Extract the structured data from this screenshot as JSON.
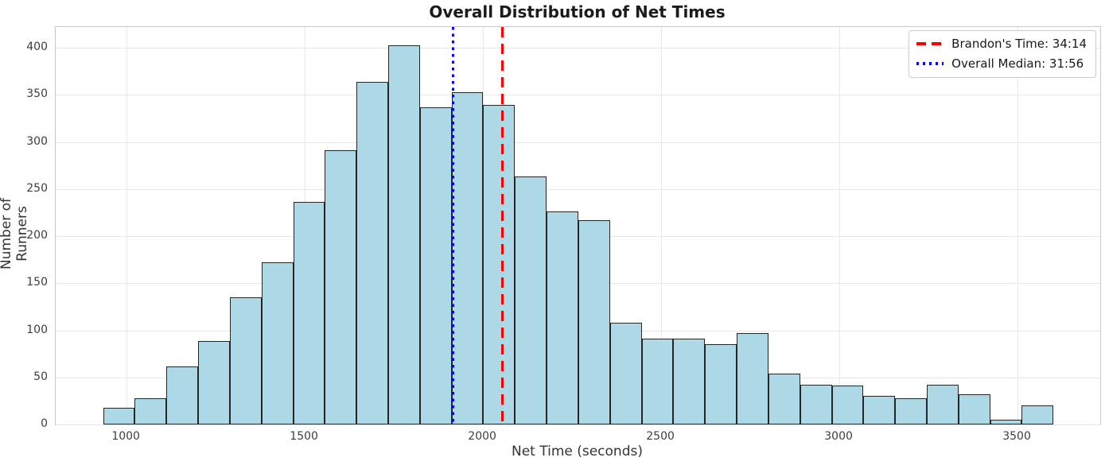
{
  "chart_data": {
    "type": "bar",
    "subtype": "histogram",
    "title": "Overall Distribution of Net Times",
    "xlabel": "Net Time (seconds)",
    "ylabel": "Number of Runners",
    "bin_start": 934,
    "bin_width": 88.9,
    "counts": [
      18,
      28,
      62,
      89,
      135,
      172,
      236,
      291,
      364,
      403,
      337,
      353,
      339,
      263,
      226,
      217,
      108,
      91,
      91,
      85,
      97,
      54,
      42,
      41,
      30,
      28,
      42,
      32,
      5,
      20
    ],
    "xlim": [
      801,
      3732
    ],
    "ylim": [
      0,
      422
    ],
    "x_ticks": [
      1000,
      1500,
      2000,
      2500,
      3000,
      3500
    ],
    "y_ticks": [
      0,
      50,
      100,
      150,
      200,
      250,
      300,
      350,
      400
    ],
    "grid": true,
    "bar_fill": "#add8e6",
    "bar_edge": "#262626",
    "vlines": [
      {
        "x": 2054,
        "color": "#ff0000",
        "style": "dashed",
        "name": "brandons-time-line"
      },
      {
        "x": 1916,
        "color": "#0000ff",
        "style": "dotted",
        "name": "overall-median-line"
      }
    ],
    "legend": {
      "position": "upper right",
      "items": [
        {
          "label": "Brandon's Time: 34:14",
          "color": "#ff0000",
          "style": "dashed"
        },
        {
          "label": "Overall Median: 31:56",
          "color": "#0000ff",
          "style": "dotted"
        }
      ]
    }
  }
}
